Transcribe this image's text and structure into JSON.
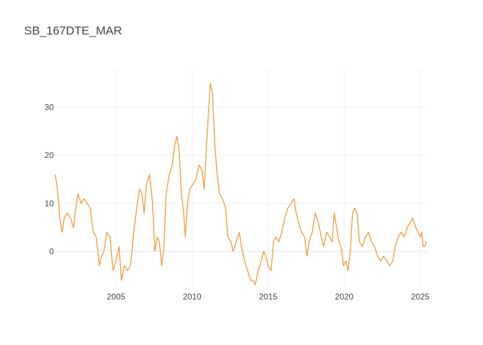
{
  "chart_data": {
    "type": "line",
    "title": "SB_167DTE_MAR",
    "xlabel": "",
    "ylabel": "",
    "xlim": [
      2001.0,
      2025.5
    ],
    "ylim": [
      -8,
      38
    ],
    "x_ticks": [
      2005,
      2010,
      2015,
      2020,
      2025
    ],
    "y_ticks": [
      0,
      10,
      20,
      30
    ],
    "grid": true,
    "legend": "none",
    "series": [
      {
        "color": "#f79632",
        "points": [
          [
            2001.0,
            16
          ],
          [
            2001.15,
            13
          ],
          [
            2001.3,
            7
          ],
          [
            2001.45,
            4
          ],
          [
            2001.6,
            7
          ],
          [
            2001.8,
            8
          ],
          [
            2002.0,
            7
          ],
          [
            2002.2,
            5
          ],
          [
            2002.35,
            9
          ],
          [
            2002.5,
            12
          ],
          [
            2002.7,
            10
          ],
          [
            2002.9,
            11
          ],
          [
            2003.1,
            10
          ],
          [
            2003.3,
            9
          ],
          [
            2003.5,
            4
          ],
          [
            2003.7,
            3
          ],
          [
            2003.9,
            -3
          ],
          [
            2004.05,
            -1
          ],
          [
            2004.2,
            0
          ],
          [
            2004.4,
            4
          ],
          [
            2004.6,
            3
          ],
          [
            2004.8,
            -4
          ],
          [
            2005.0,
            -2
          ],
          [
            2005.2,
            1
          ],
          [
            2005.35,
            -6
          ],
          [
            2005.55,
            -3
          ],
          [
            2005.75,
            -4
          ],
          [
            2005.95,
            -3
          ],
          [
            2006.2,
            5
          ],
          [
            2006.4,
            10
          ],
          [
            2006.55,
            13
          ],
          [
            2006.7,
            12
          ],
          [
            2006.85,
            8
          ],
          [
            2007.0,
            14
          ],
          [
            2007.2,
            16
          ],
          [
            2007.4,
            10
          ],
          [
            2007.55,
            0
          ],
          [
            2007.7,
            3
          ],
          [
            2007.85,
            2
          ],
          [
            2008.0,
            -3
          ],
          [
            2008.15,
            1
          ],
          [
            2008.3,
            12
          ],
          [
            2008.5,
            16
          ],
          [
            2008.7,
            18
          ],
          [
            2008.85,
            22
          ],
          [
            2009.0,
            24
          ],
          [
            2009.15,
            21
          ],
          [
            2009.3,
            12
          ],
          [
            2009.45,
            8
          ],
          [
            2009.55,
            3
          ],
          [
            2009.7,
            10
          ],
          [
            2009.85,
            13
          ],
          [
            2010.05,
            14
          ],
          [
            2010.25,
            15
          ],
          [
            2010.45,
            18
          ],
          [
            2010.65,
            17
          ],
          [
            2010.8,
            13
          ],
          [
            2010.95,
            22
          ],
          [
            2011.1,
            30
          ],
          [
            2011.2,
            35
          ],
          [
            2011.35,
            33
          ],
          [
            2011.5,
            22
          ],
          [
            2011.65,
            16
          ],
          [
            2011.8,
            12
          ],
          [
            2012.0,
            11
          ],
          [
            2012.2,
            9
          ],
          [
            2012.35,
            3
          ],
          [
            2012.55,
            2
          ],
          [
            2012.7,
            0
          ],
          [
            2012.9,
            2
          ],
          [
            2013.1,
            4
          ],
          [
            2013.25,
            1
          ],
          [
            2013.45,
            -2
          ],
          [
            2013.65,
            -4
          ],
          [
            2013.85,
            -6
          ],
          [
            2014.0,
            -6
          ],
          [
            2014.15,
            -7
          ],
          [
            2014.35,
            -4
          ],
          [
            2014.55,
            -2
          ],
          [
            2014.7,
            0
          ],
          [
            2014.85,
            -1
          ],
          [
            2015.0,
            -3
          ],
          [
            2015.2,
            -4
          ],
          [
            2015.35,
            2
          ],
          [
            2015.5,
            3
          ],
          [
            2015.7,
            2
          ],
          [
            2015.9,
            4
          ],
          [
            2016.1,
            7
          ],
          [
            2016.3,
            9
          ],
          [
            2016.5,
            10
          ],
          [
            2016.7,
            11
          ],
          [
            2016.85,
            8
          ],
          [
            2017.0,
            6
          ],
          [
            2017.2,
            4
          ],
          [
            2017.4,
            3
          ],
          [
            2017.55,
            -1
          ],
          [
            2017.7,
            2
          ],
          [
            2017.9,
            4
          ],
          [
            2018.1,
            8
          ],
          [
            2018.3,
            6
          ],
          [
            2018.5,
            3
          ],
          [
            2018.65,
            1
          ],
          [
            2018.85,
            4
          ],
          [
            2019.05,
            3
          ],
          [
            2019.2,
            2
          ],
          [
            2019.35,
            8
          ],
          [
            2019.5,
            5
          ],
          [
            2019.65,
            2
          ],
          [
            2019.8,
            1
          ],
          [
            2019.95,
            -3
          ],
          [
            2020.1,
            -2
          ],
          [
            2020.25,
            -4
          ],
          [
            2020.4,
            0
          ],
          [
            2020.55,
            8
          ],
          [
            2020.7,
            9
          ],
          [
            2020.85,
            8
          ],
          [
            2021.0,
            2
          ],
          [
            2021.2,
            1
          ],
          [
            2021.4,
            3
          ],
          [
            2021.6,
            4
          ],
          [
            2021.8,
            2
          ],
          [
            2022.0,
            1
          ],
          [
            2022.2,
            -1
          ],
          [
            2022.4,
            -2
          ],
          [
            2022.6,
            -1
          ],
          [
            2022.8,
            -2
          ],
          [
            2023.0,
            -3
          ],
          [
            2023.2,
            -2
          ],
          [
            2023.35,
            1
          ],
          [
            2023.55,
            3
          ],
          [
            2023.75,
            4
          ],
          [
            2023.95,
            3
          ],
          [
            2024.15,
            5
          ],
          [
            2024.35,
            6
          ],
          [
            2024.5,
            7
          ],
          [
            2024.7,
            5
          ],
          [
            2024.85,
            4
          ],
          [
            2025.0,
            3
          ],
          [
            2025.1,
            4
          ],
          [
            2025.2,
            1
          ],
          [
            2025.3,
            1
          ],
          [
            2025.4,
            2
          ]
        ]
      }
    ]
  }
}
